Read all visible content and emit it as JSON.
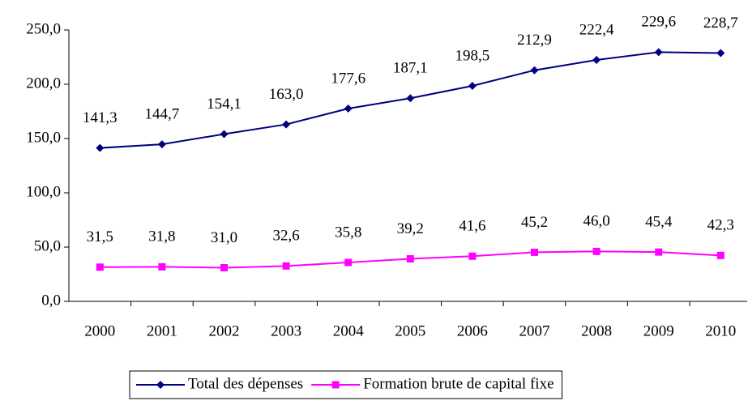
{
  "chart_data": {
    "type": "line",
    "categories": [
      "2000",
      "2001",
      "2002",
      "2003",
      "2004",
      "2005",
      "2006",
      "2007",
      "2008",
      "2009",
      "2010"
    ],
    "series": [
      {
        "name": "Total des dépenses",
        "color": "#000080",
        "marker": "diamond",
        "values": [
          141.3,
          144.7,
          154.1,
          163.0,
          177.6,
          187.1,
          198.5,
          212.9,
          222.4,
          229.6,
          228.7
        ],
        "value_labels": [
          "141,3",
          "144,7",
          "154,1",
          "163,0",
          "177,6",
          "187,1",
          "198,5",
          "212,9",
          "222,4",
          "229,6",
          "228,7"
        ]
      },
      {
        "name": "Formation brute de capital fixe",
        "color": "#ff00ff",
        "marker": "square",
        "values": [
          31.5,
          31.8,
          31.0,
          32.6,
          35.8,
          39.2,
          41.6,
          45.2,
          46.0,
          45.4,
          42.3
        ],
        "value_labels": [
          "31,5",
          "31,8",
          "31,0",
          "32,6",
          "35,8",
          "39,2",
          "41,6",
          "45,2",
          "46,0",
          "45,4",
          "42,3"
        ]
      }
    ],
    "ylim": [
      0,
      250
    ],
    "yticks": [
      {
        "value": 0,
        "label": "0,0"
      },
      {
        "value": 50,
        "label": "50,0"
      },
      {
        "value": 100,
        "label": "100,0"
      },
      {
        "value": 150,
        "label": "150,0"
      },
      {
        "value": 200,
        "label": "200,0"
      },
      {
        "value": 250,
        "label": "250,0"
      }
    ],
    "grid": false,
    "legend": "bottom"
  }
}
